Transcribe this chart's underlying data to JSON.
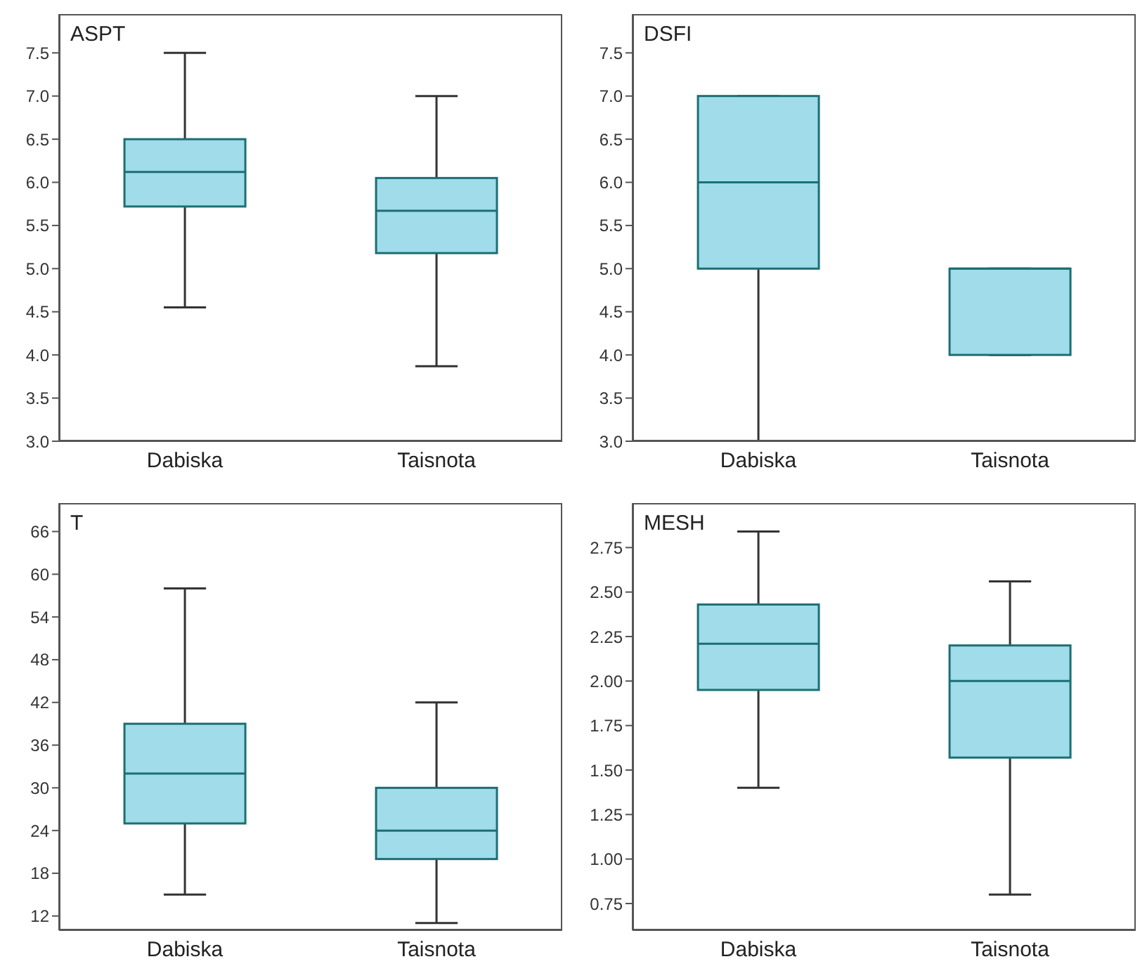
{
  "chart_data": [
    {
      "type": "box",
      "title": "ASPT",
      "categories": [
        "Dabiska",
        "Taisnota"
      ],
      "ylim": [
        3.0,
        7.95
      ],
      "yticks": [
        {
          "value": 3,
          "label": "3.0"
        },
        3.5,
        {
          "value": 4,
          "label": "4.0"
        },
        4.5,
        {
          "value": 5,
          "label": "5.0"
        },
        5.5,
        {
          "value": 6,
          "label": "6.0"
        },
        6.5,
        {
          "value": 7,
          "label": "7.0"
        },
        7.5
      ],
      "grid": false,
      "series": [
        {
          "color": "#a0dcea",
          "boxes": [
            {
              "low": 4.55,
              "q1": 5.72,
              "median": 6.12,
              "q3": 6.5,
              "high": 7.5
            },
            {
              "low": 3.87,
              "q1": 5.18,
              "median": 5.67,
              "q3": 6.05,
              "high": 7.0
            }
          ]
        }
      ]
    },
    {
      "type": "box",
      "title": "DSFI",
      "categories": [
        "Dabiska",
        "Taisnota"
      ],
      "ylim": [
        3.0,
        7.95
      ],
      "yticks": [
        {
          "value": 3,
          "label": "3.0"
        },
        3.5,
        {
          "value": 4,
          "label": "4.0"
        },
        4.5,
        {
          "value": 5,
          "label": "5.0"
        },
        5.5,
        {
          "value": 6,
          "label": "6.0"
        },
        6.5,
        {
          "value": 7,
          "label": "7.0"
        },
        7.5
      ],
      "grid": false,
      "series": [
        {
          "color": "#a0dcea",
          "boxes": [
            {
              "low": 3.0,
              "q1": 5.0,
              "median": 6.0,
              "q3": 7.0,
              "high": 7.0
            },
            {
              "low": 4.0,
              "q1": 4.0,
              "median": 5.0,
              "q3": 5.0,
              "high": 5.0
            }
          ]
        }
      ]
    },
    {
      "type": "box",
      "title": "T",
      "categories": [
        "Dabiska",
        "Taisnota"
      ],
      "ylim": [
        10,
        70
      ],
      "yticks": [
        12,
        18,
        24,
        30,
        36,
        42,
        48,
        54,
        60,
        66
      ],
      "grid": false,
      "series": [
        {
          "color": "#a0dcea",
          "boxes": [
            {
              "low": 15,
              "q1": 25,
              "median": 32,
              "q3": 39,
              "high": 58
            },
            {
              "low": 11,
              "q1": 20,
              "median": 24,
              "q3": 30,
              "high": 42
            }
          ]
        }
      ]
    },
    {
      "type": "box",
      "title": "MESH",
      "categories": [
        "Dabiska",
        "Taisnota"
      ],
      "ylim": [
        0.6,
        3.0
      ],
      "yticks": [
        0.75,
        {
          "value": 1,
          "label": "1.00"
        },
        1.25,
        {
          "value": 1.5,
          "label": "1.50"
        },
        1.75,
        {
          "value": 2,
          "label": "2.00"
        },
        2.25,
        {
          "value": 2.5,
          "label": "2.50"
        },
        2.75
      ],
      "grid": false,
      "series": [
        {
          "color": "#a0dcea",
          "boxes": [
            {
              "low": 1.4,
              "q1": 1.95,
              "median": 2.21,
              "q3": 2.43,
              "high": 2.84
            },
            {
              "low": 0.8,
              "q1": 1.57,
              "median": 2.0,
              "q3": 2.2,
              "high": 2.56
            }
          ]
        }
      ]
    }
  ]
}
